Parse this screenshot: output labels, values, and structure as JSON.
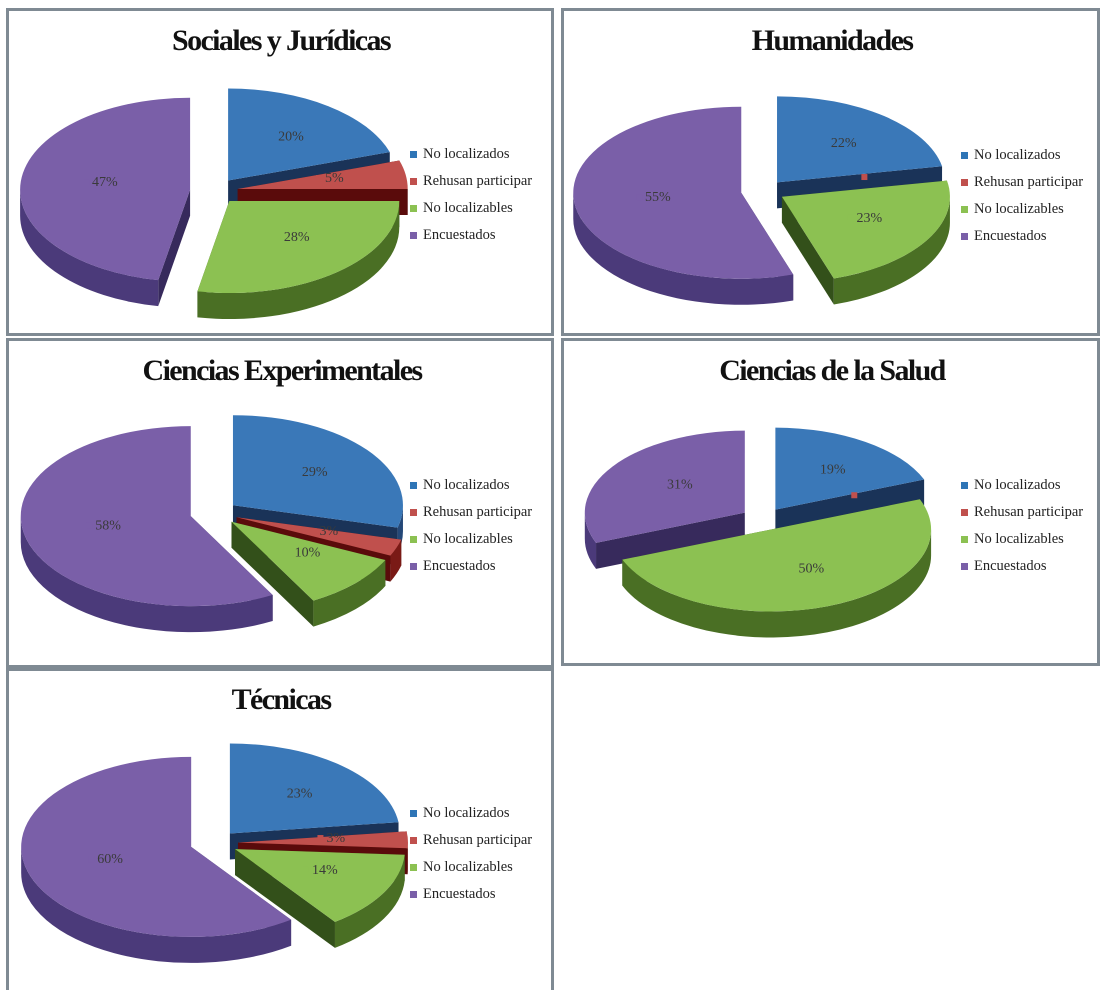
{
  "legend_colors": [
    "#2e75b6",
    "#c0504d",
    "#8cc152",
    "#7a5fa8"
  ],
  "chart_data": [
    {
      "type": "pie",
      "title": "Sociales y Jurídicas",
      "categories": [
        "No localizados",
        "Rehusan participar",
        "No localizables",
        "Encuestados"
      ],
      "values": [
        20,
        5,
        28,
        47
      ],
      "labels": [
        "20%",
        "5%",
        "28%",
        "47%"
      ],
      "legend": [
        "No localizados",
        "Rehusan participar",
        "No localizables",
        "Encuestados"
      ],
      "exploded": true
    },
    {
      "type": "pie",
      "title": "Humanidades",
      "categories": [
        "No localizados",
        "Rehusan participar",
        "No localizables",
        "Encuestados"
      ],
      "values": [
        22,
        0,
        23,
        55
      ],
      "labels": [
        "22%",
        "",
        "23%",
        "55%"
      ],
      "legend": [
        "No localizados",
        "Rehusan participar",
        "No localizables",
        "Encuestados"
      ],
      "exploded": true
    },
    {
      "type": "pie",
      "title": "Ciencias Experimentales",
      "categories": [
        "No localizados",
        "Rehusan participar",
        "No localizables",
        "Encuestados"
      ],
      "values": [
        29,
        3,
        10,
        58
      ],
      "labels": [
        "29%",
        "3%",
        "10%",
        "58%"
      ],
      "legend": [
        "No localizados",
        "Rehusan participar",
        "No localizables",
        "Encuestados"
      ],
      "exploded": true
    },
    {
      "type": "pie",
      "title": "Ciencias de la Salud",
      "categories": [
        "No localizados",
        "Rehusan participar",
        "No localizables",
        "Encuestados"
      ],
      "values": [
        19,
        0,
        50,
        31
      ],
      "labels": [
        "19%",
        "",
        "50%",
        "31%"
      ],
      "legend": [
        "No localizados",
        "Rehusan participar",
        "No localizables",
        "Encuestados"
      ],
      "exploded": true
    },
    {
      "type": "pie",
      "title": "Técnicas",
      "categories": [
        "No localizados",
        "Rehusan participar",
        "No localizables",
        "Encuestados"
      ],
      "values": [
        23,
        3,
        14,
        60
      ],
      "labels": [
        "23%",
        "3%",
        "14%",
        "60%"
      ],
      "legend": [
        "No localizados",
        "Rehusan participar",
        "No localizables",
        "Encuestados"
      ],
      "exploded": true
    }
  ]
}
